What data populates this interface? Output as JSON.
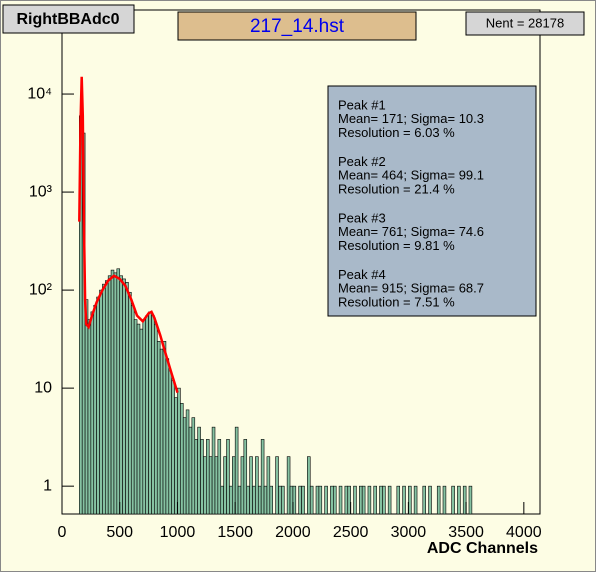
{
  "chart_data": {
    "type": "histogram",
    "canvas_label": "RightBBAdc0",
    "title": "217_14.hst",
    "entries_label": "Nent = 28178",
    "x_label": "ADC Channels",
    "color": "#86c2a2",
    "log_y": true,
    "xlim": [
      0,
      4140
    ],
    "ylim": [
      0.52,
      72000
    ],
    "xticks": [
      0,
      500,
      1000,
      1500,
      2000,
      2500,
      3000,
      3500,
      4000
    ],
    "yticks": [
      {
        "value": 1,
        "label": "1"
      },
      {
        "value": 10,
        "label": "10"
      },
      {
        "value": 100,
        "label": "10²"
      },
      {
        "value": 1000,
        "label": "10³"
      },
      {
        "value": 10000,
        "label": "10⁴"
      }
    ],
    "bins": [
      150,
      175,
      200,
      225,
      250,
      275,
      300,
      325,
      350,
      375,
      400,
      425,
      450,
      475,
      500,
      525,
      550,
      575,
      600,
      625,
      650,
      675,
      700,
      725,
      750,
      775,
      800,
      825,
      850,
      875,
      900,
      925,
      950,
      975,
      1000,
      1025,
      1050,
      1075,
      1100,
      1125,
      1150,
      1175,
      1200,
      1225,
      1250,
      1275,
      1300,
      1325,
      1350,
      1375,
      1400,
      1425,
      1450,
      1475,
      1500,
      1525,
      1550,
      1575,
      1600,
      1625,
      1650,
      1675,
      1700,
      1725,
      1750,
      1775,
      1800,
      1825,
      1850,
      1875,
      1900,
      1925,
      1950,
      1975,
      2000,
      2025,
      2050,
      2075,
      2100,
      2125,
      2150,
      2175,
      2200,
      2225,
      2250,
      2275,
      2300,
      2325,
      2350,
      2375,
      2400,
      2425,
      2450,
      2475,
      2500,
      2525,
      2550,
      2575,
      2600,
      2625,
      2650,
      2675,
      2700,
      2725,
      2750,
      2775,
      2800,
      2825,
      2850,
      2875,
      2900,
      2925,
      2950,
      2975,
      3000,
      3025,
      3050,
      3075,
      3100,
      3125,
      3150,
      3175,
      3200,
      3225,
      3250,
      3275,
      3300,
      3325,
      3350,
      3375,
      3400,
      3425,
      3450,
      3475,
      3500,
      3525,
      3550
    ],
    "counts": [
      6000,
      4000,
      80,
      50,
      60,
      70,
      85,
      100,
      115,
      125,
      140,
      160,
      150,
      165,
      140,
      130,
      120,
      95,
      70,
      50,
      45,
      40,
      50,
      55,
      60,
      55,
      45,
      30,
      25,
      30,
      20,
      15,
      12,
      8,
      10,
      7,
      5,
      6,
      4,
      5,
      3,
      4,
      3,
      2,
      3,
      2,
      4,
      2,
      3,
      1,
      2,
      3,
      1,
      2,
      4,
      1,
      2,
      3,
      1,
      2,
      1,
      2,
      1,
      3,
      1,
      2,
      1,
      0,
      2,
      1,
      1,
      0,
      2,
      1,
      1,
      0,
      1,
      1,
      0,
      2,
      1,
      0,
      1,
      1,
      0,
      1,
      0,
      1,
      1,
      0,
      1,
      0,
      1,
      1,
      0,
      1,
      0,
      1,
      1,
      0,
      1,
      0,
      1,
      0,
      1,
      1,
      0,
      1,
      0,
      0,
      1,
      0,
      1,
      0,
      1,
      0,
      1,
      0,
      0,
      1,
      0,
      1,
      0,
      0,
      1,
      0,
      1,
      0,
      0,
      1,
      0,
      1,
      0,
      1,
      0,
      1
    ],
    "fit": {
      "color": "#ff0000",
      "x": [
        150,
        160,
        171,
        180,
        190,
        200,
        210,
        230,
        260,
        300,
        350,
        400,
        450,
        500,
        550,
        600,
        650,
        700,
        750,
        775,
        800,
        850,
        900,
        950,
        1000
      ],
      "y": [
        500,
        5000,
        15000,
        6000,
        500,
        80,
        45,
        42,
        55,
        75,
        100,
        125,
        140,
        130,
        110,
        80,
        55,
        48,
        58,
        60,
        52,
        35,
        22,
        14,
        9
      ]
    },
    "stats": [
      [
        "Peak #1",
        "Mean= 171;  Sigma= 10.3",
        "Resolution = 6.03 %"
      ],
      [
        "Peak #2",
        "Mean= 464;  Sigma= 99.1",
        "Resolution = 21.4 %"
      ],
      [
        "Peak #3",
        "Mean= 761;  Sigma= 74.6",
        "Resolution = 9.81 %"
      ],
      [
        "Peak #4",
        "Mean= 915;  Sigma= 68.7",
        "Resolution = 7.51 %"
      ]
    ]
  }
}
